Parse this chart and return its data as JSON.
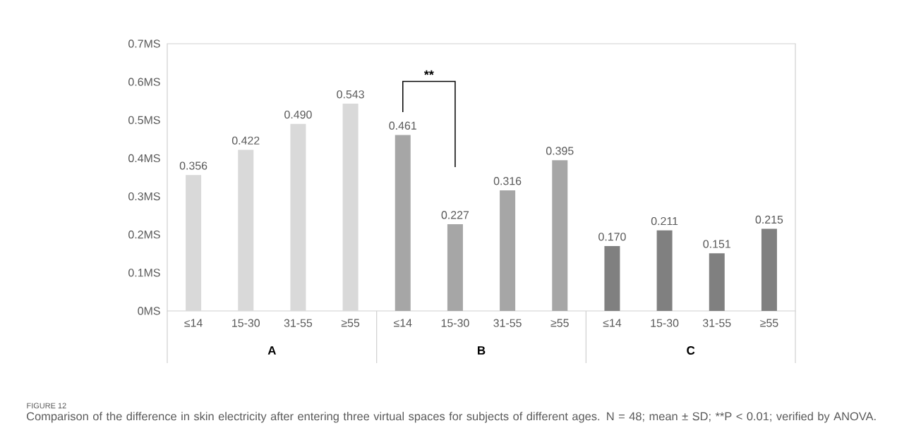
{
  "chart_data": {
    "type": "bar",
    "categories": [
      "≤14",
      "15-30",
      "31-55",
      "≥55",
      "≤14",
      "15-30",
      "31-55",
      "≥55",
      "≤14",
      "15-30",
      "31-55",
      "≥55"
    ],
    "values": [
      0.356,
      0.422,
      0.49,
      0.543,
      0.461,
      0.227,
      0.316,
      0.395,
      0.17,
      0.211,
      0.151,
      0.215
    ],
    "value_labels": [
      "0.356",
      "0.422",
      "0.490",
      "0.543",
      "0.461",
      "0.227",
      "0.316",
      "0.395",
      "0.170",
      "0.211",
      "0.151",
      "0.215"
    ],
    "colors": [
      "#d9d9d9",
      "#d9d9d9",
      "#d9d9d9",
      "#d9d9d9",
      "#a6a6a6",
      "#a6a6a6",
      "#a6a6a6",
      "#a6a6a6",
      "#808080",
      "#808080",
      "#808080",
      "#808080"
    ],
    "ylim": [
      0,
      0.7
    ],
    "yticks": [
      {
        "value": 0,
        "label": "0MS"
      },
      {
        "value": 0.1,
        "label": "0.1MS"
      },
      {
        "value": 0.2,
        "label": "0.2MS"
      },
      {
        "value": 0.3,
        "label": "0.3MS"
      },
      {
        "value": 0.4,
        "label": "0.4MS"
      },
      {
        "value": 0.5,
        "label": "0.5MS"
      },
      {
        "value": 0.6,
        "label": "0.6MS"
      },
      {
        "value": 0.7,
        "label": "0.7MS"
      }
    ],
    "grid": false,
    "annotations": [
      "A",
      "B",
      "C",
      "**",
      "FIGURE 12",
      "Comparison of the difference in skin electricity after entering three virtual spaces for subjects of different ages. N = 48; mean ± SD; **P < 0.01; verified by ANOVA."
    ]
  }
}
